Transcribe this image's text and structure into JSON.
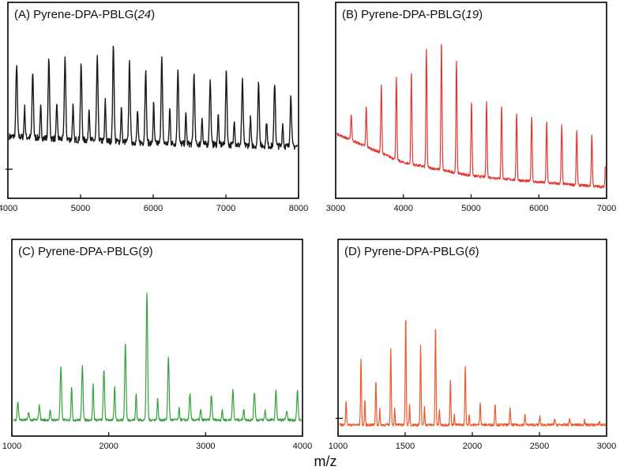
{
  "figure": {
    "xlabel": "m/z"
  },
  "chart_data": [
    {
      "type": "line",
      "panel": "A",
      "title_prefix": "(A) Pyrene-DPA-PBLG(",
      "title_italic": "24",
      "title_suffix": ")",
      "color": "#1a1a1a",
      "xlim": [
        4000,
        8000
      ],
      "xticks": [
        4000,
        5000,
        6000,
        7000,
        8000
      ],
      "ylim": [
        0,
        100
      ],
      "baseline_tick": 14,
      "peak_spacing": 222,
      "peak_width": 20,
      "baseline": [
        [
          4100,
          34
        ],
        [
          5000,
          32
        ],
        [
          6000,
          30
        ],
        [
          7000,
          29
        ],
        [
          7900,
          28
        ]
      ],
      "peaks": [
        [
          4120,
          78
        ],
        [
          4342,
          73
        ],
        [
          4564,
          82
        ],
        [
          4786,
          83
        ],
        [
          5008,
          78
        ],
        [
          5230,
          82
        ],
        [
          5452,
          90
        ],
        [
          5674,
          79
        ],
        [
          5896,
          75
        ],
        [
          6118,
          82
        ],
        [
          6340,
          76
        ],
        [
          6562,
          73
        ],
        [
          6784,
          68
        ],
        [
          7006,
          74
        ],
        [
          7228,
          68
        ],
        [
          7450,
          68
        ],
        [
          7672,
          67
        ],
        [
          7894,
          59
        ]
      ],
      "minor_peaks": [
        [
          4230,
          52
        ],
        [
          4452,
          52
        ],
        [
          4674,
          54
        ],
        [
          4896,
          53
        ],
        [
          5118,
          52
        ],
        [
          5340,
          56
        ],
        [
          5562,
          52
        ],
        [
          5784,
          50
        ],
        [
          6006,
          54
        ],
        [
          6228,
          51
        ],
        [
          6450,
          48
        ],
        [
          6672,
          46
        ],
        [
          6894,
          48
        ],
        [
          7116,
          45
        ],
        [
          7338,
          45
        ],
        [
          7560,
          44
        ],
        [
          7782,
          42
        ]
      ]
    },
    {
      "type": "line",
      "panel": "B",
      "title_prefix": "(B) Pyrene-DPA-PBLG(",
      "title_italic": "19",
      "title_suffix": ")",
      "color": "#e8332f",
      "xlim": [
        3000,
        7000
      ],
      "xticks": [
        3000,
        4000,
        5000,
        6000,
        7000
      ],
      "ylim": [
        0,
        100
      ],
      "baseline_tick": null,
      "peak_spacing": 222,
      "peak_width": 16,
      "baseline": [
        [
          3000,
          36
        ],
        [
          4000,
          18
        ],
        [
          5000,
          10
        ],
        [
          6000,
          6
        ],
        [
          7000,
          3
        ]
      ],
      "peaks": [
        [
          3230,
          48
        ],
        [
          3452,
          52
        ],
        [
          3674,
          66
        ],
        [
          3896,
          70
        ],
        [
          4118,
          74
        ],
        [
          4340,
          87
        ],
        [
          4562,
          93
        ],
        [
          4784,
          80
        ],
        [
          5006,
          56
        ],
        [
          5228,
          55
        ],
        [
          5450,
          53
        ],
        [
          5672,
          49
        ],
        [
          5894,
          47
        ],
        [
          6116,
          44
        ],
        [
          6338,
          41
        ],
        [
          6560,
          38
        ],
        [
          6782,
          35
        ],
        [
          6990,
          32
        ]
      ],
      "minor_peaks": []
    },
    {
      "type": "line",
      "panel": "C",
      "title_prefix": "(C) Pyrene-DPA-PBLG(",
      "title_italic": "9",
      "title_suffix": ")",
      "color": "#33a33a",
      "xlim": [
        1000,
        4000
      ],
      "xticks": [
        1000,
        2000,
        3000,
        4000
      ],
      "ylim": [
        0,
        100
      ],
      "baseline_tick": null,
      "peak_spacing": 222,
      "peak_width": 14,
      "baseline": [
        [
          1000,
          6
        ],
        [
          4000,
          6
        ]
      ],
      "peaks": [
        [
          1062,
          17
        ],
        [
          1284,
          15
        ],
        [
          1506,
          38
        ],
        [
          1728,
          40
        ],
        [
          1950,
          37
        ],
        [
          2172,
          53
        ],
        [
          2394,
          83
        ],
        [
          2616,
          45
        ],
        [
          2838,
          22
        ],
        [
          3060,
          21
        ],
        [
          3282,
          24
        ],
        [
          3504,
          23
        ],
        [
          3726,
          24
        ],
        [
          3948,
          24
        ]
      ],
      "minor_peaks": [
        [
          1173,
          11
        ],
        [
          1395,
          12
        ],
        [
          1617,
          27
        ],
        [
          1839,
          28
        ],
        [
          2061,
          27
        ],
        [
          2283,
          22
        ],
        [
          2505,
          19
        ],
        [
          2727,
          13
        ],
        [
          2949,
          12
        ],
        [
          3171,
          12
        ],
        [
          3393,
          13
        ],
        [
          3615,
          12
        ],
        [
          3837,
          12
        ]
      ]
    },
    {
      "type": "line",
      "panel": "D",
      "title_prefix": "(D) Pyrene-DPA-PBLG(",
      "title_italic": "6",
      "title_suffix": ")",
      "color": "#ef5a2d",
      "xlim": [
        1000,
        3000
      ],
      "xticks": [
        1000,
        1500,
        2000,
        2500,
        3000
      ],
      "ylim": [
        0,
        100
      ],
      "baseline_tick": 7,
      "peak_spacing": 111,
      "peak_width": 7,
      "baseline": [
        [
          1000,
          3
        ],
        [
          3000,
          3
        ]
      ],
      "peaks": [
        [
          1060,
          18
        ],
        [
          1171,
          43
        ],
        [
          1282,
          30
        ],
        [
          1393,
          50
        ],
        [
          1504,
          70
        ],
        [
          1615,
          51
        ],
        [
          1726,
          64
        ],
        [
          1837,
          31
        ],
        [
          1948,
          39
        ],
        [
          2059,
          17
        ],
        [
          2170,
          16
        ],
        [
          2281,
          13
        ],
        [
          2392,
          9
        ],
        [
          2503,
          8
        ],
        [
          2614,
          7
        ],
        [
          2725,
          7
        ],
        [
          2836,
          6
        ],
        [
          2947,
          5
        ]
      ],
      "minor_peaks": [
        [
          1200,
          19
        ],
        [
          1311,
          13
        ],
        [
          1422,
          14
        ],
        [
          1533,
          16
        ],
        [
          1644,
          14
        ],
        [
          1755,
          13
        ],
        [
          1866,
          10
        ],
        [
          1977,
          10
        ]
      ]
    }
  ]
}
